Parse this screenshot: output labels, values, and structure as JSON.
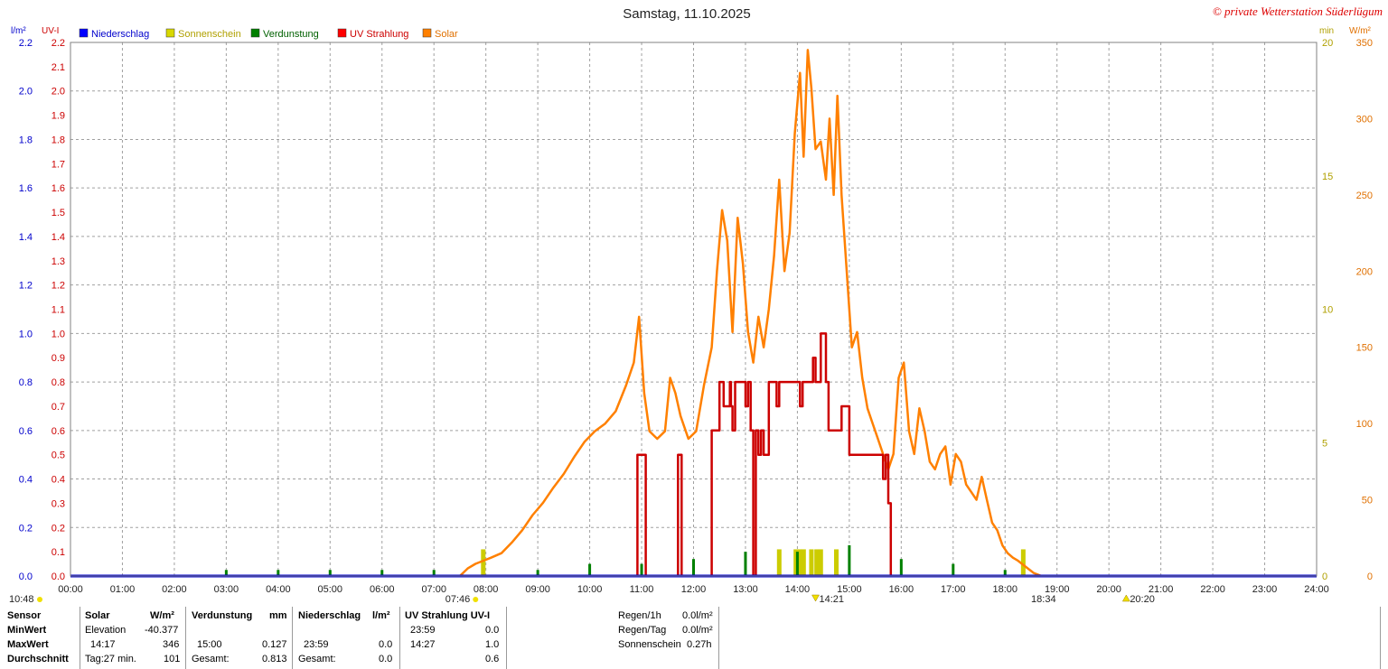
{
  "header": {
    "title": "Samstag, 11.10.2025",
    "credit": "© private Wetterstation Süderlügum"
  },
  "axis_units": {
    "left_outer": "l/m²",
    "left_inner": "UV-I",
    "right_inner": "min",
    "right_outer": "W/m²"
  },
  "legend": [
    {
      "label": "Niederschlag",
      "color": "#0000ff"
    },
    {
      "label": "Sonnenschein",
      "color": "#d8d800"
    },
    {
      "label": "Verdunstung",
      "color": "#008000"
    },
    {
      "label": "UV Strahlung",
      "color": "#ff0000"
    },
    {
      "label": "Solar",
      "color": "#ff8000"
    }
  ],
  "colors": {
    "precip": "#0000cc",
    "uv": "#cc0000",
    "sun": "#cccc00",
    "solar": "#ff8000",
    "evap": "#008000",
    "grid": "#a0a0a0"
  },
  "markers": {
    "current_time": "10:48",
    "sunrise": "07:46",
    "solar_noon": "14:21",
    "sunset": "18:34",
    "dusk": "20:20"
  },
  "chart_data": {
    "type": "line",
    "x_range_hours": [
      0,
      24
    ],
    "x_ticks": [
      "00:00",
      "01:00",
      "02:00",
      "03:00",
      "04:00",
      "05:00",
      "06:00",
      "07:00",
      "08:00",
      "09:00",
      "10:00",
      "11:00",
      "12:00",
      "13:00",
      "14:00",
      "15:00",
      "16:00",
      "17:00",
      "18:00",
      "19:00",
      "20:00",
      "21:00",
      "22:00",
      "23:00",
      "24:00"
    ],
    "axes": {
      "precip": {
        "range": [
          0,
          2.2
        ],
        "ticks": [
          "0.0",
          "0.2",
          "0.4",
          "0.6",
          "0.8",
          "1.0",
          "1.2",
          "1.4",
          "1.6",
          "1.8",
          "2.0",
          "2.2"
        ],
        "tick_values": [
          0,
          0.2,
          0.4,
          0.6,
          0.8,
          1.0,
          1.2,
          1.4,
          1.6,
          1.8,
          2.0,
          2.2
        ]
      },
      "uv": {
        "range": [
          0,
          2.2
        ],
        "ticks": [
          "0.0",
          "0.1",
          "0.2",
          "0.3",
          "0.4",
          "0.5",
          "0.6",
          "0.7",
          "0.8",
          "0.9",
          "1.0",
          "1.1",
          "1.2",
          "1.3",
          "1.4",
          "1.5",
          "1.6",
          "1.7",
          "1.8",
          "1.9",
          "2.0",
          "2.1",
          "2.2"
        ],
        "tick_values": [
          0,
          0.1,
          0.2,
          0.3,
          0.4,
          0.5,
          0.6,
          0.7,
          0.8,
          0.9,
          1.0,
          1.1,
          1.2,
          1.3,
          1.4,
          1.5,
          1.6,
          1.7,
          1.8,
          1.9,
          2.0,
          2.1,
          2.2
        ]
      },
      "sunshine": {
        "range": [
          0,
          20
        ],
        "ticks": [
          "0",
          "5",
          "10",
          "15",
          "20"
        ],
        "tick_values": [
          0,
          5,
          10,
          15,
          20
        ]
      },
      "solar": {
        "range": [
          0,
          350
        ],
        "ticks": [
          "0",
          "50",
          "100",
          "150",
          "200",
          "250",
          "300",
          "350"
        ],
        "tick_values": [
          0,
          50,
          100,
          150,
          200,
          250,
          300,
          350
        ]
      }
    },
    "grid": true,
    "series": [
      {
        "name": "Solar",
        "axis": "solar",
        "x": [
          7.5,
          7.65,
          7.8,
          7.95,
          8.1,
          8.3,
          8.5,
          8.7,
          8.9,
          9.1,
          9.3,
          9.5,
          9.7,
          9.9,
          10.1,
          10.3,
          10.5,
          10.7,
          10.85,
          10.95,
          11.05,
          11.15,
          11.3,
          11.45,
          11.55,
          11.65,
          11.75,
          11.9,
          12.05,
          12.2,
          12.35,
          12.45,
          12.55,
          12.65,
          12.75,
          12.85,
          12.95,
          13.05,
          13.15,
          13.25,
          13.35,
          13.45,
          13.55,
          13.65,
          13.75,
          13.85,
          13.95,
          14.05,
          14.12,
          14.2,
          14.27,
          14.35,
          14.45,
          14.55,
          14.62,
          14.7,
          14.77,
          14.85,
          14.95,
          15.05,
          15.15,
          15.25,
          15.35,
          15.45,
          15.55,
          15.65,
          15.75,
          15.85,
          15.95,
          16.05,
          16.15,
          16.25,
          16.35,
          16.45,
          16.55,
          16.65,
          16.75,
          16.85,
          16.95,
          17.05,
          17.15,
          17.25,
          17.35,
          17.45,
          17.55,
          17.65,
          17.75,
          17.85,
          17.95,
          18.05,
          18.15,
          18.25,
          18.4,
          18.55,
          18.7,
          18.85
        ],
        "y": [
          0,
          5,
          8,
          10,
          12,
          15,
          22,
          30,
          40,
          48,
          58,
          67,
          78,
          88,
          95,
          100,
          108,
          125,
          140,
          170,
          120,
          95,
          90,
          95,
          130,
          120,
          105,
          90,
          95,
          125,
          150,
          200,
          240,
          220,
          160,
          235,
          205,
          160,
          140,
          170,
          150,
          175,
          210,
          260,
          200,
          225,
          290,
          330,
          275,
          345,
          320,
          280,
          285,
          260,
          300,
          250,
          315,
          250,
          200,
          150,
          160,
          130,
          110,
          100,
          90,
          80,
          70,
          80,
          130,
          140,
          95,
          80,
          110,
          95,
          75,
          70,
          80,
          85,
          60,
          80,
          75,
          60,
          55,
          50,
          65,
          50,
          35,
          30,
          20,
          15,
          12,
          10,
          6,
          2,
          0,
          0
        ]
      },
      {
        "name": "UV Strahlung",
        "axis": "uv",
        "x": [
          10.9,
          10.92,
          11.05,
          11.08,
          11.68,
          11.7,
          11.75,
          11.77,
          12.28,
          12.35,
          12.45,
          12.5,
          12.55,
          12.58,
          12.65,
          12.7,
          12.72,
          12.75,
          12.8,
          12.95,
          13.0,
          13.05,
          13.1,
          13.15,
          13.2,
          13.25,
          13.3,
          13.35,
          13.45,
          13.55,
          13.6,
          13.65,
          14.0,
          14.05,
          14.1,
          14.15,
          14.3,
          14.35,
          14.45,
          14.55,
          14.6,
          14.8,
          14.85,
          14.9,
          15.0,
          15.05,
          15.6,
          15.65,
          15.7,
          15.75,
          15.8
        ],
        "y": [
          0,
          0.5,
          0.5,
          0,
          0,
          0.5,
          0.5,
          0,
          0,
          0.6,
          0.6,
          0.8,
          0.8,
          0.7,
          0.7,
          0.8,
          0.7,
          0.6,
          0.8,
          0.8,
          0.7,
          0.8,
          0.6,
          0,
          0.6,
          0.5,
          0.6,
          0.5,
          0.8,
          0.8,
          0.7,
          0.8,
          0.8,
          0.7,
          0.8,
          0.8,
          0.9,
          0.8,
          1.0,
          0.8,
          0.6,
          0.6,
          0.7,
          0.7,
          0.5,
          0.5,
          0.5,
          0.4,
          0.5,
          0.3,
          0
        ]
      },
      {
        "name": "Sonnenschein",
        "axis": "sunshine",
        "bars": [
          {
            "x": 7.95,
            "v": 1.0
          },
          {
            "x": 13.65,
            "v": 1.0
          },
          {
            "x": 13.97,
            "v": 1.0
          },
          {
            "x": 14.05,
            "v": 1.0
          },
          {
            "x": 14.12,
            "v": 1.0
          },
          {
            "x": 14.27,
            "v": 1.0
          },
          {
            "x": 14.37,
            "v": 1.0
          },
          {
            "x": 14.45,
            "v": 1.0
          },
          {
            "x": 14.75,
            "v": 1.0
          },
          {
            "x": 18.35,
            "v": 1.0
          }
        ]
      },
      {
        "name": "Verdunstung",
        "axis": "precip",
        "bars": [
          {
            "x": 3.0,
            "v": 0.025
          },
          {
            "x": 4.0,
            "v": 0.025
          },
          {
            "x": 5.0,
            "v": 0.025
          },
          {
            "x": 6.0,
            "v": 0.025
          },
          {
            "x": 7.0,
            "v": 0.025
          },
          {
            "x": 9.0,
            "v": 0.025
          },
          {
            "x": 10.0,
            "v": 0.05
          },
          {
            "x": 11.0,
            "v": 0.05
          },
          {
            "x": 12.0,
            "v": 0.07
          },
          {
            "x": 13.0,
            "v": 0.1
          },
          {
            "x": 14.0,
            "v": 0.1
          },
          {
            "x": 15.0,
            "v": 0.127
          },
          {
            "x": 16.0,
            "v": 0.07
          },
          {
            "x": 17.0,
            "v": 0.05
          },
          {
            "x": 18.0,
            "v": 0.025
          }
        ]
      },
      {
        "name": "Niederschlag",
        "axis": "precip",
        "x": [
          0,
          24
        ],
        "y": [
          0,
          0
        ]
      }
    ]
  },
  "info_table": {
    "headers": [
      "Sensor",
      "Solar",
      "W/m²",
      "Verdunstung",
      "mm",
      "Niederschlag",
      "l/m²",
      "UV Strahlung UV-I"
    ],
    "row_labels": [
      "MinWert",
      "MaxWert",
      "Durchschnitt"
    ],
    "solar": {
      "min_label": "Elevation",
      "min_value": "-40.377",
      "max_time": "14:17",
      "max_value": "346",
      "avg_label": "Tag:27 min.",
      "avg_value": "101"
    },
    "evap": {
      "max_time": "15:00",
      "max_value": "0.127",
      "total_label": "Gesamt:",
      "total_value": "0.813"
    },
    "precip": {
      "max_time": "23:59",
      "max_value": "0.0",
      "total_label": "Gesamt:",
      "total_value": "0.0"
    },
    "uv": {
      "min_time": "23:59",
      "min_value": "0.0",
      "max_time": "14:27",
      "max_value": "1.0",
      "avg_value": "0.6"
    },
    "summary": [
      {
        "label": "Regen/1h",
        "value": "0.0l/m²"
      },
      {
        "label": "Regen/Tag",
        "value": "0.0l/m²"
      },
      {
        "label": "Sonnenschein",
        "value": "0.27h"
      }
    ]
  }
}
